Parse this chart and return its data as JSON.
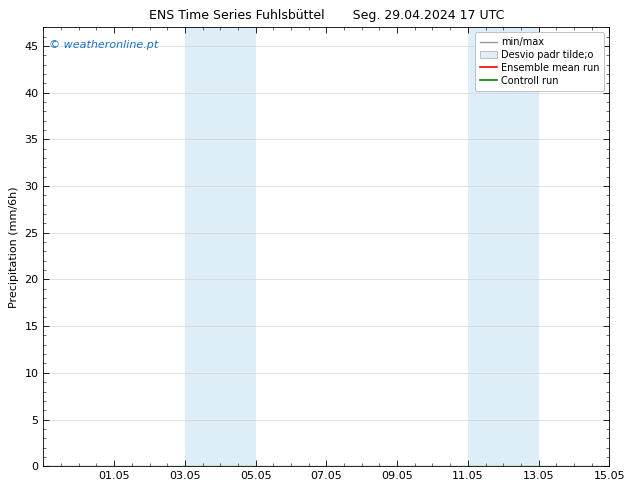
{
  "title": "ENS Time Series Fuhlsbüttel       Seg. 29.04.2024 17 UTC",
  "ylabel": "Precipitation (mm/6h)",
  "watermark": "© weatheronline.pt",
  "watermark_color": "#1a6fc4",
  "ylim": [
    0,
    47
  ],
  "yticks": [
    0,
    5,
    10,
    15,
    20,
    25,
    30,
    35,
    40,
    45
  ],
  "xtick_labels": [
    "01.05",
    "03.05",
    "05.05",
    "07.05",
    "09.05",
    "11.05",
    "13.05",
    "15.05"
  ],
  "xtick_positions": [
    2,
    4,
    6,
    8,
    10,
    12,
    14,
    16
  ],
  "xlim": [
    0,
    16
  ],
  "shaded_bands": [
    {
      "x_start": 4.0,
      "x_end": 6.0
    },
    {
      "x_start": 12.0,
      "x_end": 14.0
    }
  ],
  "shaded_color": "#ddeef8",
  "legend_labels": [
    "min/max",
    "Desvio padr tilde;o",
    "Ensemble mean run",
    "Controll run"
  ],
  "legend_colors": [
    "#999999",
    "#cccccc",
    "#ff0000",
    "#008000"
  ],
  "bg_color": "#ffffff",
  "plot_bg_color": "#ffffff",
  "grid_color": "#cccccc",
  "font_size": 8,
  "ylabel_fontsize": 8,
  "title_fontsize": 9,
  "watermark_fontsize": 8,
  "legend_fontsize": 7
}
